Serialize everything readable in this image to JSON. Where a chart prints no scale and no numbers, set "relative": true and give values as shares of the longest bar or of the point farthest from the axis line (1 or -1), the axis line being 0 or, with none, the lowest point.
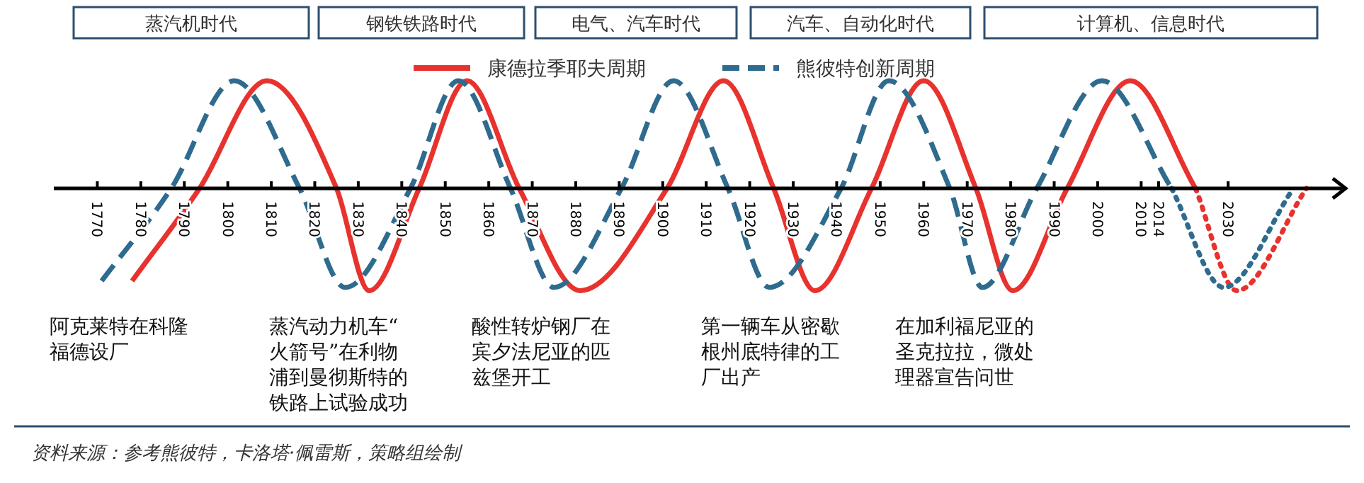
{
  "chart_data": {
    "type": "line",
    "relative": true,
    "tick_labels": "x",
    "legend": "top",
    "xlim": [
      1760,
      2057
    ],
    "xticks": [
      1770,
      1780,
      1790,
      1800,
      1810,
      1820,
      1830,
      1840,
      1850,
      1860,
      1870,
      1880,
      1890,
      1900,
      1910,
      1920,
      1930,
      1940,
      1950,
      1960,
      1970,
      1980,
      1990,
      2000,
      2010,
      2014,
      2030
    ],
    "series": [
      {
        "name": "康德拉季耶夫周期",
        "color": "#e8322e",
        "line_style": "solid",
        "x": [
          1778,
          1793.5,
          1809,
          1825,
          1832.5,
          1844,
          1855,
          1867,
          1881,
          1901,
          1914,
          1925.5,
          1935,
          1948,
          1960,
          1972,
          1980.5,
          1993,
          2007.5,
          2022.5
        ],
        "values": [
          -0.86,
          0,
          1,
          0,
          -0.95,
          0,
          1,
          0,
          -0.95,
          0,
          1,
          0,
          -0.95,
          0,
          1,
          0,
          -0.95,
          0,
          1,
          0
        ]
      },
      {
        "name": "熊彼特创新周期",
        "color": "#2e6b8e",
        "line_style": "dashed",
        "x": [
          1771,
          1787,
          1801.5,
          1816.5,
          1827,
          1842,
          1853,
          1865,
          1875,
          1890.5,
          1902.5,
          1915,
          1924.5,
          1941,
          1952,
          1966,
          1973.5,
          1986,
          2001,
          2017
        ],
        "values": [
          -0.86,
          0,
          1,
          0,
          -0.92,
          0,
          1,
          0,
          -0.92,
          0,
          1,
          0,
          -0.92,
          0,
          1,
          0,
          -0.92,
          0,
          1,
          0
        ]
      },
      {
        "color": "#e8322e",
        "line_style": "dotted",
        "x": [
          2022.5,
          2032,
          2048
        ],
        "values": [
          0,
          -0.95,
          0
        ]
      },
      {
        "color": "#2e6b8e",
        "line_style": "dotted",
        "x": [
          2017,
          2029,
          2045
        ],
        "values": [
          0,
          -0.92,
          0
        ]
      }
    ],
    "annotations": [
      "蒸汽机时代",
      "钢铁铁路时代",
      "电气、汽车时代",
      "汽车、自动化时代",
      "计算机、信息时代",
      "阿克莱特在科隆福德设厂",
      "蒸汽动力机车“火箭号”在利物浦到曼彻斯特的铁路上试验成功",
      "酸性转炉钢厂在宾夕法尼亚的匹兹堡开工",
      "第一辆车从密歇根州底特律的工厂出产",
      "在加利福尼亚的圣克拉拉，微处理器宣告问世",
      "资料来源：参考熊彼特，卡洛塔·佩雷斯，策略组绘制"
    ]
  }
}
